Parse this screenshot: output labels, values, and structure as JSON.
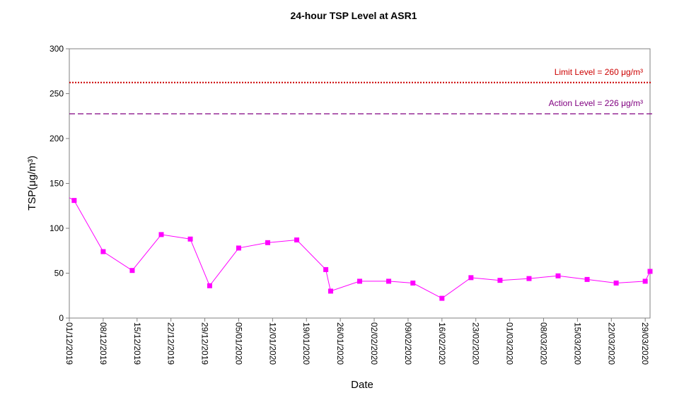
{
  "chart_data": {
    "type": "line",
    "title": "24-hour TSP Level at ASR1",
    "xlabel": "Date",
    "ylabel": "TSP(μg/m³)",
    "ylim": [
      0,
      300
    ],
    "yticks": [
      0,
      50,
      100,
      150,
      200,
      250,
      300
    ],
    "xlim": [
      "2019-12-01",
      "2020-03-30"
    ],
    "xtick_labels": [
      "01/12/2019",
      "08/12/2019",
      "15/12/2019",
      "22/12/2019",
      "29/12/2019",
      "05/01/2020",
      "12/01/2020",
      "19/01/2020",
      "26/01/2020",
      "02/02/2020",
      "09/02/2020",
      "16/02/2020",
      "23/02/2020",
      "01/03/2020",
      "08/03/2020",
      "15/03/2020",
      "22/03/2020",
      "29/03/2020"
    ],
    "xtick_dates": [
      "2019-12-01",
      "2019-12-08",
      "2019-12-15",
      "2019-12-22",
      "2019-12-29",
      "2020-01-05",
      "2020-01-12",
      "2020-01-19",
      "2020-01-26",
      "2020-02-02",
      "2020-02-09",
      "2020-02-16",
      "2020-02-23",
      "2020-03-01",
      "2020-03-08",
      "2020-03-15",
      "2020-03-22",
      "2020-03-29"
    ],
    "grid": false,
    "series": [
      {
        "color": "#ff00ff",
        "x": [
          "2019-12-01",
          "2019-12-02",
          "2019-12-08",
          "2019-12-14",
          "2019-12-20",
          "2019-12-26",
          "2019-12-30",
          "2020-01-05",
          "2020-01-11",
          "2020-01-17",
          "2020-01-23",
          "2020-01-24",
          "2020-01-30",
          "2020-02-05",
          "2020-02-10",
          "2020-02-16",
          "2020-02-22",
          "2020-02-28",
          "2020-03-05",
          "2020-03-11",
          "2020-03-17",
          "2020-03-23",
          "2020-03-29",
          "2020-03-30"
        ],
        "values": [
          134,
          131,
          74,
          53,
          93,
          88,
          36,
          78,
          84,
          87,
          54,
          30,
          41,
          41,
          39,
          22,
          45,
          42,
          44,
          47,
          43,
          39,
          41,
          52
        ]
      }
    ],
    "reference_lines": [
      {
        "label": "Limit Level  = 260 μg/m³",
        "value": 260,
        "color": "#cc0000",
        "style": "dotted"
      },
      {
        "label": "Action Level  = 226 μg/m³",
        "value": 226,
        "color": "#800080",
        "style": "dashed"
      }
    ]
  }
}
